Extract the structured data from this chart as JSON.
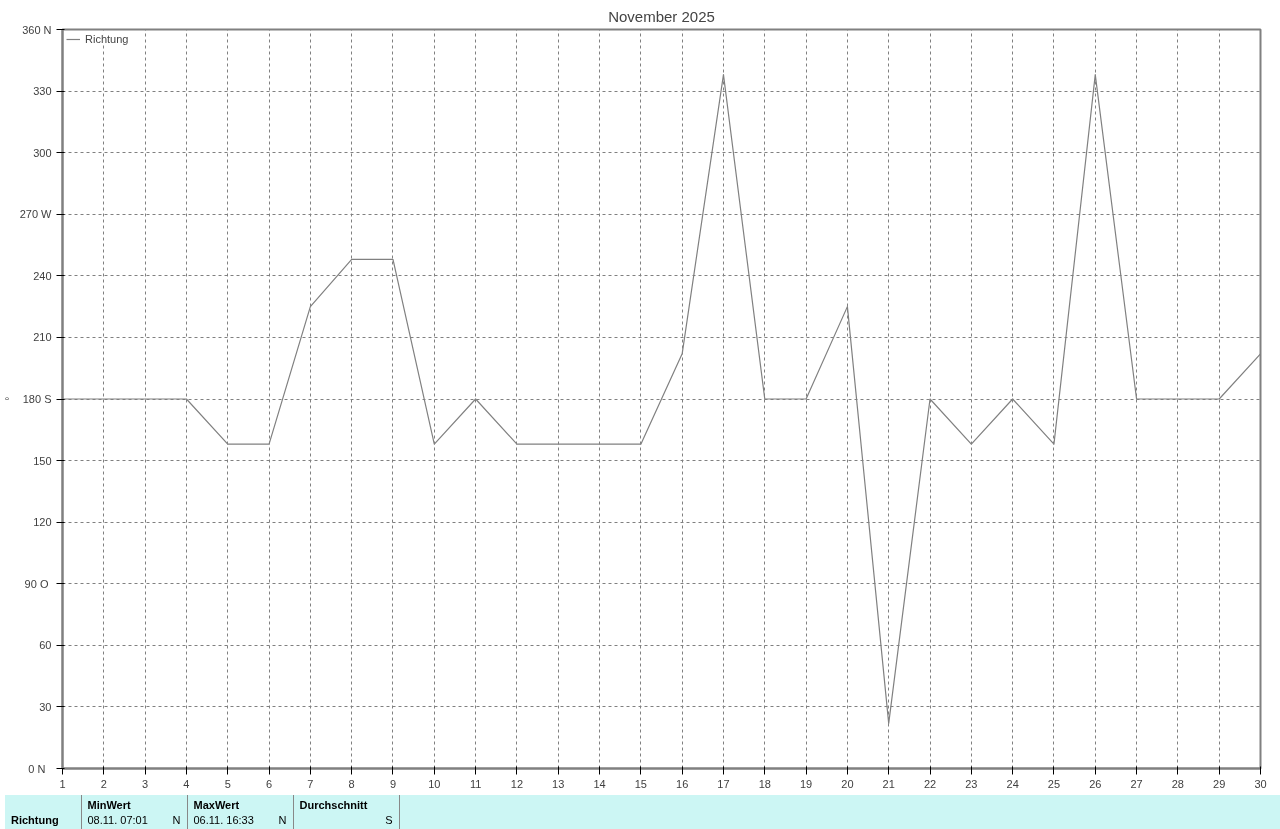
{
  "chart_data": {
    "type": "line",
    "title": "November 2025",
    "ylabel": "°",
    "x": [
      1,
      2,
      3,
      4,
      5,
      6,
      7,
      8,
      9,
      10,
      11,
      12,
      13,
      14,
      15,
      16,
      17,
      18,
      19,
      20,
      21,
      22,
      23,
      24,
      25,
      26,
      27,
      28,
      29,
      30
    ],
    "series": [
      {
        "name": "Richtung",
        "color": "#808080",
        "values": [
          180,
          180,
          180,
          180,
          158,
          158,
          225,
          248,
          248,
          158,
          180,
          158,
          158,
          158,
          158,
          202,
          338,
          180,
          180,
          225,
          22,
          180,
          158,
          180,
          158,
          338,
          180,
          180,
          180,
          202
        ]
      }
    ],
    "xlim": [
      1,
      30
    ],
    "xticks": [
      1,
      2,
      3,
      4,
      5,
      6,
      7,
      8,
      9,
      10,
      11,
      12,
      13,
      14,
      15,
      16,
      17,
      18,
      19,
      20,
      21,
      22,
      23,
      24,
      25,
      26,
      27,
      28,
      29,
      30
    ],
    "ylim": [
      0,
      360
    ],
    "yticks": [
      {
        "value": 0,
        "label": "0   N"
      },
      30,
      60,
      {
        "value": 90,
        "label": "90  O"
      },
      120,
      150,
      {
        "value": 180,
        "label": "180 S"
      },
      210,
      240,
      {
        "value": 270,
        "label": "270 W"
      },
      300,
      330,
      {
        "value": 360,
        "label": "360 N"
      }
    ],
    "grid": true,
    "legend": "top left",
    "line_style": "solid",
    "marker": "none",
    "annotations": [
      "Richtung",
      "MinWert",
      "08.11.  07:01",
      "N",
      "MaxWert",
      "06.11.  16:33",
      "N",
      "Durchschnitt",
      "S"
    ]
  }
}
